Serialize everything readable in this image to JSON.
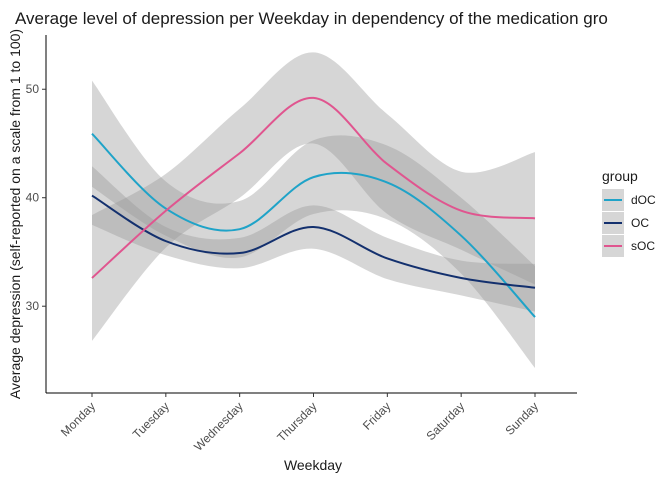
{
  "chart_data": {
    "type": "line",
    "title": "Average level of depression per Weekday in dependency of the medication gro",
    "xlabel": "Weekday",
    "ylabel": "Average depression (self-reported on a scale from 1 to 100)",
    "categories": [
      "Monday",
      "Tuesday",
      "Wednesday",
      "Thursday",
      "Friday",
      "Saturday",
      "Sunday"
    ],
    "ylim": [
      22,
      55
    ],
    "yticks": [
      30,
      40,
      50
    ],
    "grid": false,
    "legend": {
      "title": "group",
      "position": "right"
    },
    "series": [
      {
        "name": "dOC",
        "color": "#1fa3c8",
        "values": [
          45.9,
          39.0,
          37.1,
          41.9,
          41.4,
          36.5,
          29.0
        ],
        "ci_lower": [
          41.0,
          36.5,
          34.5,
          38.5,
          38.0,
          33.0,
          24.3
        ],
        "ci_upper": [
          50.8,
          41.5,
          39.7,
          45.3,
          44.8,
          40.0,
          33.7
        ]
      },
      {
        "name": "OC",
        "color": "#13306e",
        "values": [
          40.2,
          36.0,
          34.9,
          37.3,
          34.4,
          32.6,
          31.7
        ],
        "ci_lower": [
          37.5,
          34.7,
          33.5,
          35.3,
          32.5,
          31.0,
          29.5
        ],
        "ci_upper": [
          42.9,
          37.3,
          36.3,
          39.3,
          36.3,
          34.2,
          33.9
        ]
      },
      {
        "name": "sOC",
        "color": "#e0558f",
        "values": [
          32.6,
          38.8,
          44.1,
          49.2,
          43.1,
          38.8,
          38.1
        ],
        "ci_lower": [
          26.8,
          35.4,
          40.0,
          45.0,
          38.5,
          35.2,
          32.0
        ],
        "ci_upper": [
          38.4,
          42.2,
          48.2,
          53.4,
          47.7,
          42.4,
          44.2
        ]
      }
    ]
  }
}
